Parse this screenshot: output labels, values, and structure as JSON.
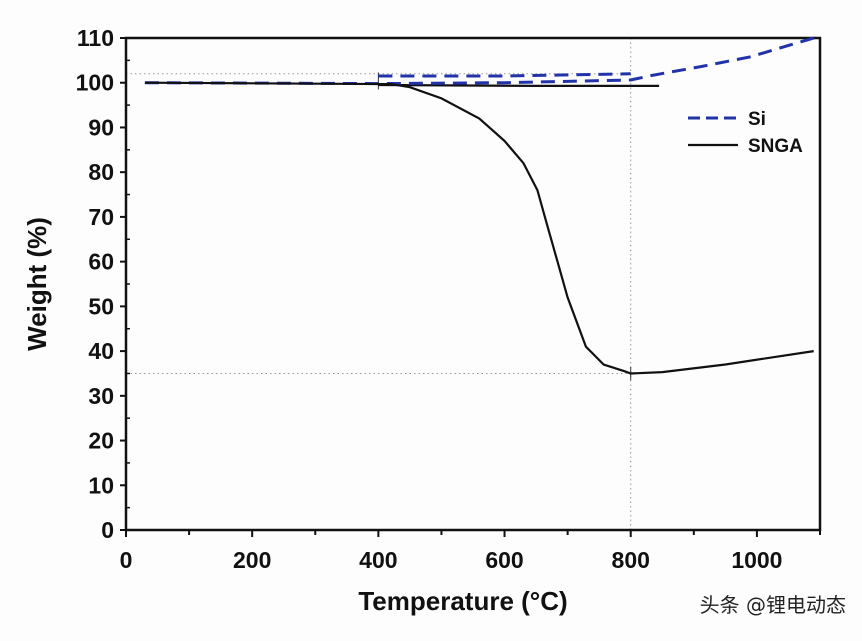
{
  "chart_data": {
    "type": "line",
    "xlabel": "Temperature (°C)",
    "ylabel": "Weight (%)",
    "xlim": [
      0,
      1100
    ],
    "ylim": [
      0,
      110
    ],
    "xticks": [
      0,
      200,
      400,
      600,
      800,
      1000
    ],
    "yticks": [
      0,
      10,
      20,
      30,
      40,
      50,
      60,
      70,
      80,
      90,
      100,
      110
    ],
    "grid": false,
    "legend_placement": "top-right",
    "series": [
      {
        "name": "Si",
        "style": "dashed",
        "color": "#2233aa",
        "x": [
          30,
          400,
          600,
          800,
          832,
          911,
          990,
          1054,
          1090
        ],
        "y": [
          100,
          99.8,
          100,
          100.6,
          101.6,
          103.6,
          105.8,
          108.5,
          110
        ]
      },
      {
        "name": "SNGA",
        "style": "solid",
        "color": "#111111",
        "x": [
          30,
          420,
          450,
          500,
          560,
          600,
          630,
          652,
          668,
          684,
          700,
          729,
          757,
          790,
          800,
          850,
          950,
          1090
        ],
        "y": [
          100,
          99.7,
          99,
          96.5,
          92,
          87,
          82,
          76,
          68,
          60,
          52,
          41,
          37,
          35.5,
          35,
          35.3,
          37,
          40
        ]
      }
    ],
    "extra_segments": [
      {
        "series": "Si",
        "style": "dashed",
        "color": "#2233aa",
        "x": [
          400,
          600,
          800
        ],
        "y": [
          101.5,
          101.5,
          102
        ]
      },
      {
        "series": "SNGA",
        "style": "solid",
        "color": "#111111",
        "x": [
          400,
          650,
          845
        ],
        "y": [
          99.5,
          99.3,
          99.3
        ]
      }
    ],
    "reference_lines": {
      "horizontal": [
        102,
        35
      ],
      "vertical": [
        800
      ]
    }
  },
  "watermark": "头条 @锂电动态"
}
